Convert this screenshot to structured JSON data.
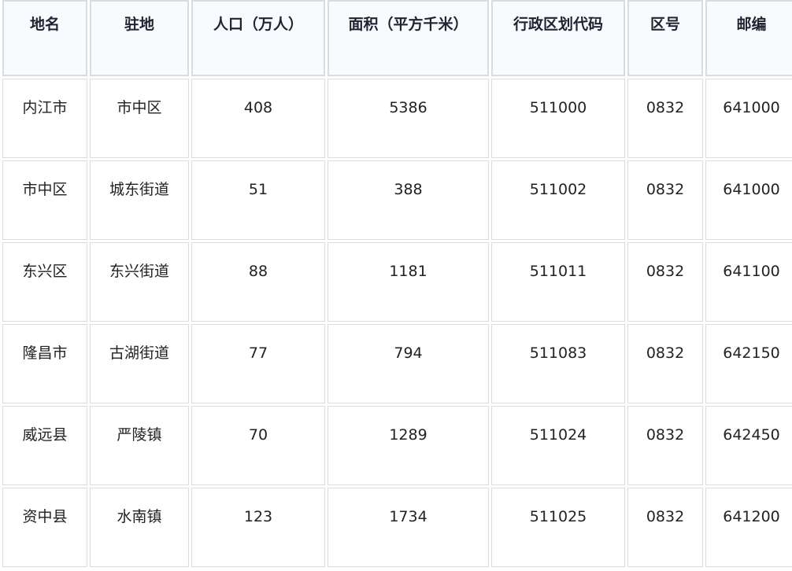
{
  "table": {
    "headers": [
      "地名",
      "驻地",
      "人口（万人）",
      "面积（平方千米）",
      "行政区划代码",
      "区号",
      "邮编"
    ],
    "rows": [
      [
        "内江市",
        "市中区",
        "408",
        "5386",
        "511000",
        "0832",
        "641000"
      ],
      [
        "市中区",
        "城东街道",
        "51",
        "388",
        "511002",
        "0832",
        "641000"
      ],
      [
        "东兴区",
        "东兴街道",
        "88",
        "1181",
        "511011",
        "0832",
        "641100"
      ],
      [
        "隆昌市",
        "古湖街道",
        "77",
        "794",
        "511083",
        "0832",
        "642150"
      ],
      [
        "威远县",
        "严陵镇",
        "70",
        "1289",
        "511024",
        "0832",
        "642450"
      ],
      [
        "资中县",
        "水南镇",
        "123",
        "1734",
        "511025",
        "0832",
        "641200"
      ]
    ]
  }
}
